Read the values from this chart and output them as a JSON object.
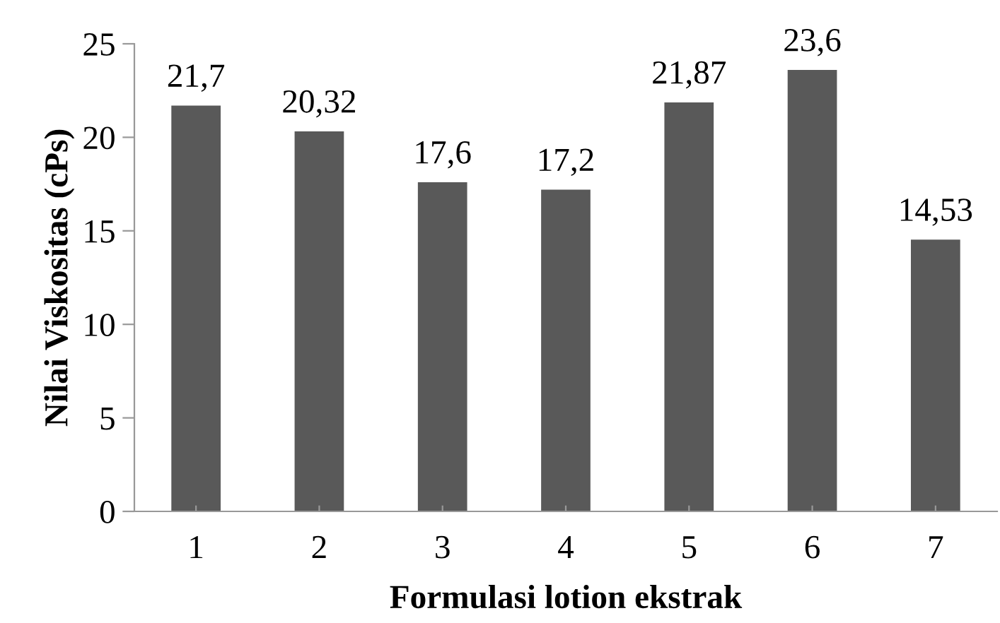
{
  "chart_data": {
    "type": "bar",
    "xlabel": "Formulasi lotion ekstrak",
    "ylabel": "Nilai Viskositas (cPs)",
    "categories": [
      "1",
      "2",
      "3",
      "4",
      "5",
      "6",
      "7"
    ],
    "values": [
      21.7,
      20.32,
      17.6,
      17.2,
      21.87,
      23.6,
      14.53
    ],
    "value_labels": [
      "21,7",
      "20,32",
      "17,6",
      "17,2",
      "21,87",
      "23,6",
      "14,53"
    ],
    "color": "#595959",
    "ylim": [
      0,
      25
    ],
    "yticks": [
      0,
      5,
      10,
      15,
      20,
      25
    ],
    "grid": false
  }
}
